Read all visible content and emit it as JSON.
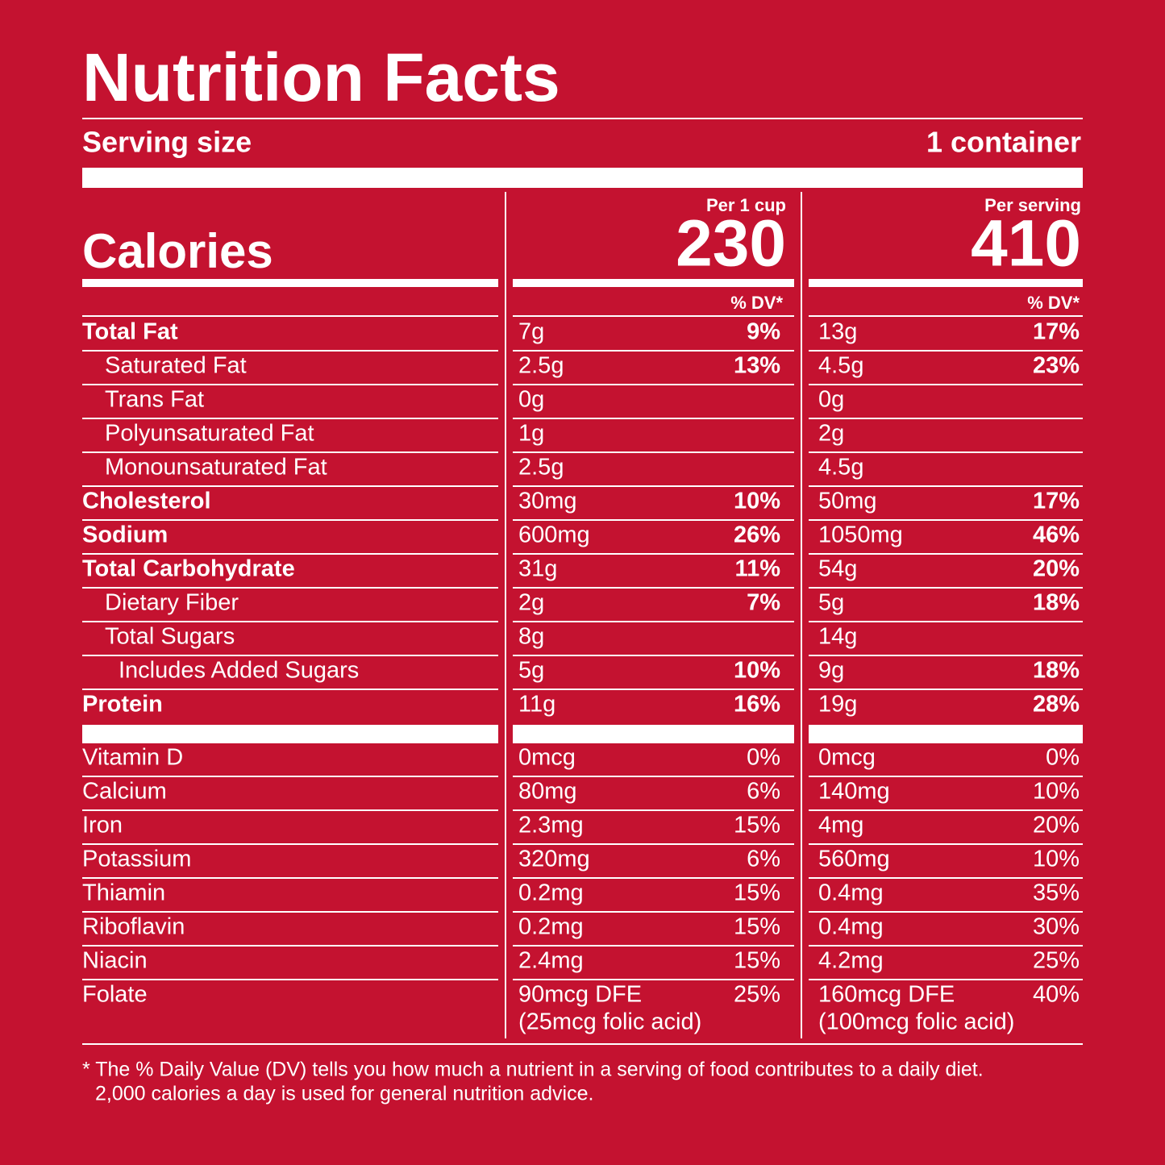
{
  "header": {
    "title": "Nutrition Facts",
    "serving_size_label": "Serving size",
    "serving_size": "1 container"
  },
  "calories": {
    "label": "Calories",
    "columns": [
      {
        "heading": "Per 1 cup",
        "value": "230"
      },
      {
        "heading": "Per serving",
        "value": "410"
      }
    ],
    "dv_heading": "% DV*"
  },
  "nutrients": [
    {
      "name": "Total Fat",
      "cols": [
        {
          "amount": "7g",
          "dv": "9%"
        },
        {
          "amount": "13g",
          "dv": "17%"
        }
      ]
    },
    {
      "name": "Saturated Fat",
      "cols": [
        {
          "amount": "2.5g",
          "dv": "13%"
        },
        {
          "amount": "4.5g",
          "dv": "23%"
        }
      ]
    },
    {
      "name": "Trans Fat",
      "cols": [
        {
          "amount": "0g"
        },
        {
          "amount": "0g"
        }
      ]
    },
    {
      "name": "Polyunsaturated Fat",
      "cols": [
        {
          "amount": "1g"
        },
        {
          "amount": "2g"
        }
      ]
    },
    {
      "name": "Monounsaturated Fat",
      "cols": [
        {
          "amount": "2.5g"
        },
        {
          "amount": "4.5g"
        }
      ]
    },
    {
      "name": "Cholesterol",
      "cols": [
        {
          "amount": "30mg",
          "dv": "10%"
        },
        {
          "amount": "50mg",
          "dv": "17%"
        }
      ]
    },
    {
      "name": "Sodium",
      "cols": [
        {
          "amount": "600mg",
          "dv": "26%"
        },
        {
          "amount": "1050mg",
          "dv": "46%"
        }
      ]
    },
    {
      "name": "Total Carbohydrate",
      "cols": [
        {
          "amount": "31g",
          "dv": "11%"
        },
        {
          "amount": "54g",
          "dv": "20%"
        }
      ]
    },
    {
      "name": "Dietary Fiber",
      "cols": [
        {
          "amount": "2g",
          "dv": "7%"
        },
        {
          "amount": "5g",
          "dv": "18%"
        }
      ]
    },
    {
      "name": "Total Sugars",
      "cols": [
        {
          "amount": "8g"
        },
        {
          "amount": "14g"
        }
      ]
    },
    {
      "name": "Includes Added Sugars",
      "cols": [
        {
          "amount": "5g",
          "dv": "10%"
        },
        {
          "amount": "9g",
          "dv": "18%"
        }
      ]
    },
    {
      "name": "Protein",
      "cols": [
        {
          "amount": "11g",
          "dv": "16%"
        },
        {
          "amount": "19g",
          "dv": "28%"
        }
      ]
    }
  ],
  "vitamins": [
    {
      "name": "Vitamin D",
      "cols": [
        {
          "amount": "0mcg",
          "dv": "0%"
        },
        {
          "amount": "0mcg",
          "dv": "0%"
        }
      ]
    },
    {
      "name": "Calcium",
      "cols": [
        {
          "amount": "80mg",
          "dv": "6%"
        },
        {
          "amount": "140mg",
          "dv": "10%"
        }
      ]
    },
    {
      "name": "Iron",
      "cols": [
        {
          "amount": "2.3mg",
          "dv": "15%"
        },
        {
          "amount": "4mg",
          "dv": "20%"
        }
      ]
    },
    {
      "name": "Potassium",
      "cols": [
        {
          "amount": "320mg",
          "dv": "6%"
        },
        {
          "amount": "560mg",
          "dv": "10%"
        }
      ]
    },
    {
      "name": "Thiamin",
      "cols": [
        {
          "amount": "0.2mg",
          "dv": "15%"
        },
        {
          "amount": "0.4mg",
          "dv": "35%"
        }
      ]
    },
    {
      "name": "Riboflavin",
      "cols": [
        {
          "amount": "0.2mg",
          "dv": "15%"
        },
        {
          "amount": "0.4mg",
          "dv": "30%"
        }
      ]
    },
    {
      "name": "Niacin",
      "cols": [
        {
          "amount": "2.4mg",
          "dv": "15%"
        },
        {
          "amount": "4.2mg",
          "dv": "25%"
        }
      ]
    },
    {
      "name": "Folate",
      "cols": [
        {
          "amount": "90mcg DFE",
          "detail": "(25mcg folic acid)",
          "dv": "25%"
        },
        {
          "amount": "160mcg DFE",
          "detail": "(100mcg folic acid)",
          "dv": "40%"
        }
      ]
    }
  ],
  "footnote": [
    "* The % Daily Value (DV) tells you how much a nutrient in a serving of food contributes to a daily diet.",
    "2,000 calories a day is used for general nutrition advice."
  ]
}
